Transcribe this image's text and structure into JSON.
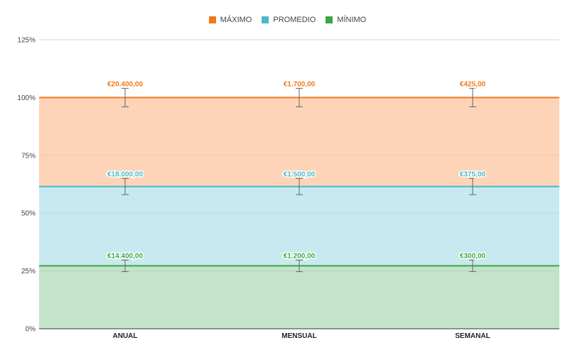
{
  "colors": {
    "maximo": "#f07a1a",
    "maximo_fill": "#fdd4b8",
    "promedio": "#4db8c8",
    "promedio_fill": "#c8e9ef",
    "minimo": "#3aa64a",
    "minimo_fill": "#c3e4c8",
    "errorbar": "#666666",
    "grid": "#e2e2e2",
    "axis": "#333333"
  },
  "chart_data": {
    "type": "area",
    "categories": [
      "ANUAL",
      "MENSUAL",
      "SEMANAL"
    ],
    "y_tick_labels": [
      "0%",
      "25%",
      "50%",
      "75%",
      "100%",
      "125%"
    ],
    "ylim": [
      0,
      125
    ],
    "grid": true,
    "legend_position": "top-center",
    "series": [
      {
        "name": "MÁXIMO",
        "color_key": "maximo",
        "values": [
          100,
          100,
          100
        ],
        "error": [
          4,
          4,
          4
        ],
        "labels": [
          "€20.400,00",
          "€1.700,00",
          "€425,00"
        ]
      },
      {
        "name": "PROMEDIO",
        "color_key": "promedio",
        "values": [
          61.5,
          61.5,
          61.5
        ],
        "error": [
          3.5,
          3.5,
          3.5
        ],
        "labels": [
          "€18.000,00",
          "€1.500,00",
          "€375,00"
        ]
      },
      {
        "name": "MÍNIMO",
        "color_key": "minimo",
        "values": [
          27.2,
          27.2,
          27.2
        ],
        "error": [
          2.5,
          2.5,
          2.5
        ],
        "labels": [
          "€14.400,00",
          "€1.200,00",
          "€300,00"
        ]
      }
    ]
  }
}
